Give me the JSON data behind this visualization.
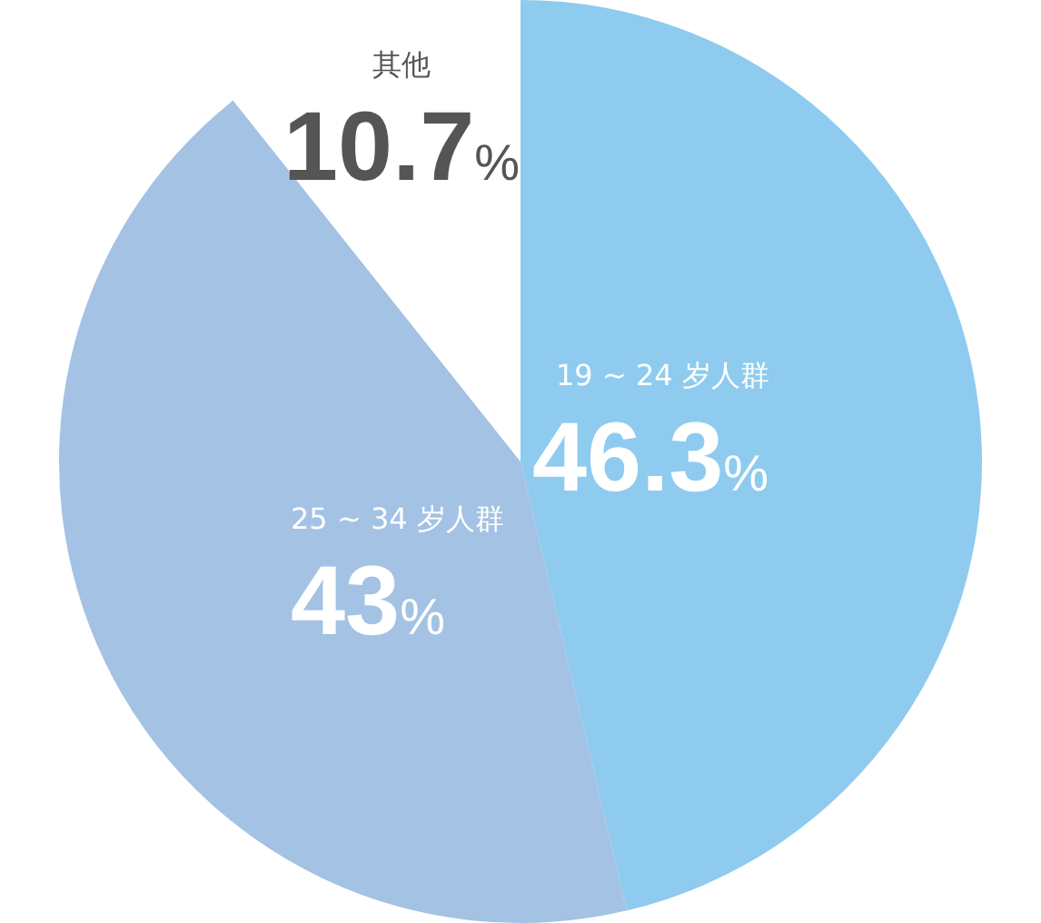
{
  "chart_data": {
    "type": "pie",
    "categories": [
      "19 ~ 24 岁人群",
      "25 ~ 34 岁人群",
      "其他"
    ],
    "values": [
      46.3,
      43,
      10.7
    ],
    "value_labels": [
      "46.3%",
      "43%",
      "10.7%"
    ],
    "colors": [
      "#8ecbef",
      "#a3c2e4",
      "#ffffff"
    ],
    "legend": false
  }
}
